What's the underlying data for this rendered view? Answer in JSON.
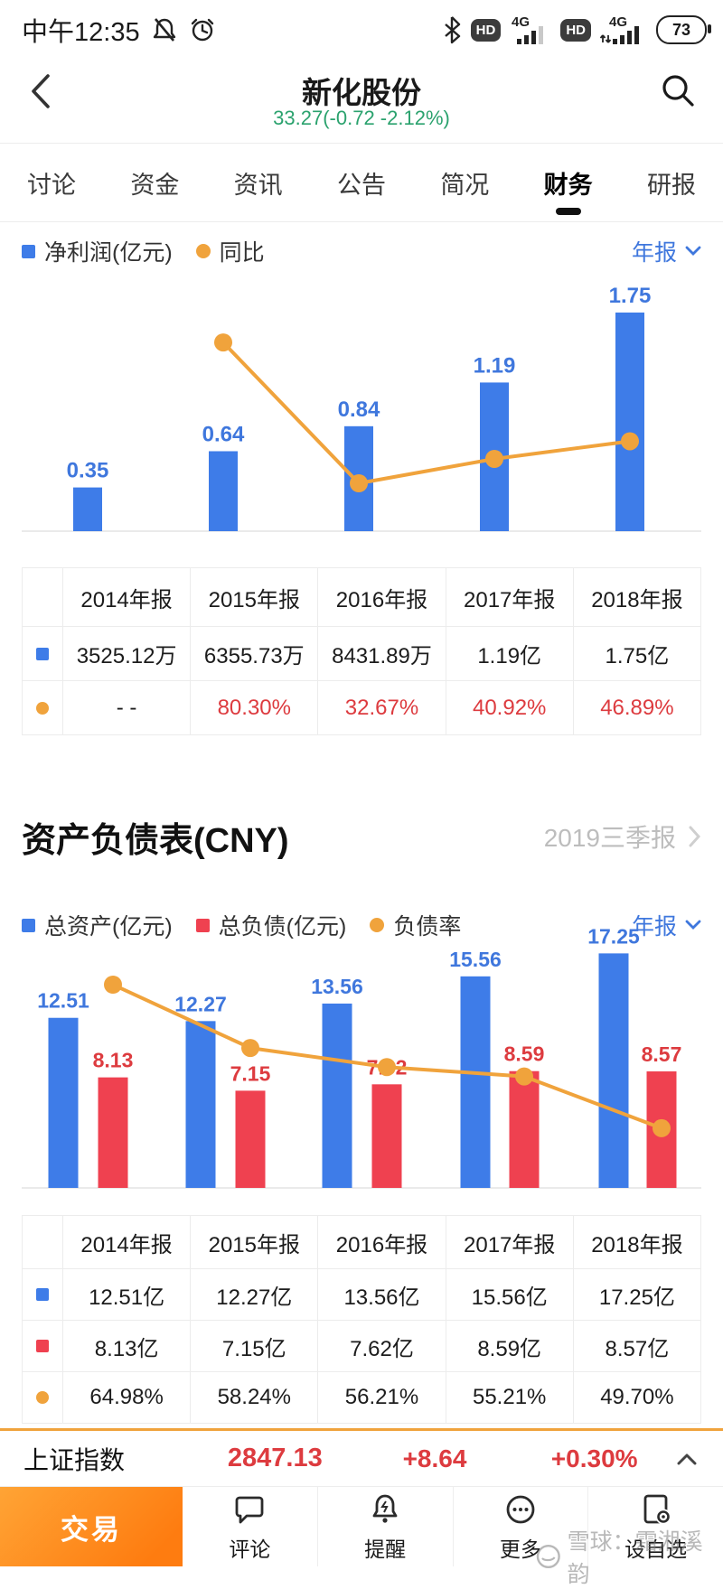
{
  "status_bar": {
    "time": "中午12:35",
    "volte_badge": "HD",
    "network_type": "4G",
    "battery": "73"
  },
  "header": {
    "title": "新化股份",
    "quote": "33.27(-0.72 -2.12%)",
    "quote_color": "#2ba26e"
  },
  "tabs": {
    "items": [
      "讨论",
      "资金",
      "资讯",
      "公告",
      "简况",
      "财务",
      "研报"
    ],
    "active_index": 5
  },
  "net_profit_section": {
    "legend": [
      {
        "label": "净利润(亿元)",
        "color": "#3e7ce8",
        "shape": "square"
      },
      {
        "label": "同比",
        "color": "#f0a33c",
        "shape": "circle"
      }
    ],
    "period_selector": "年报"
  },
  "balance_section": {
    "title": "资产负债表(CNY)",
    "period_badge": "2019三季报",
    "legend": [
      {
        "label": "总资产(亿元)",
        "color": "#3e7ce8",
        "shape": "square"
      },
      {
        "label": "总负债(亿元)",
        "color": "#ef4150",
        "shape": "square"
      },
      {
        "label": "负债率",
        "color": "#f0a33c",
        "shape": "circle"
      }
    ],
    "period_selector": "年报"
  },
  "chart_data": [
    {
      "id": "net-profit-chart",
      "type": "bar+line",
      "title": "净利润(亿元) 与 同比",
      "categories": [
        "2014年报",
        "2015年报",
        "2016年报",
        "2017年报",
        "2018年报"
      ],
      "series": [
        {
          "name": "净利润(亿元)",
          "type": "bar",
          "color": "#3e7ce8",
          "label_color": "#3f77dd",
          "values": [
            0.35,
            0.64,
            0.84,
            1.19,
            1.75
          ]
        },
        {
          "name": "同比",
          "type": "line",
          "color": "#f0a33c",
          "unit": "%",
          "values": [
            null,
            80.3,
            32.67,
            40.92,
            46.89
          ]
        }
      ],
      "grid": false,
      "legend_position": "top"
    },
    {
      "id": "balance-chart",
      "type": "bar+line",
      "title": "总资产 总负债 与 负债率",
      "categories": [
        "2014年报",
        "2015年报",
        "2016年报",
        "2017年报",
        "2018年报"
      ],
      "series": [
        {
          "name": "总资产(亿元)",
          "type": "bar",
          "color": "#3e7ce8",
          "label_color": "#3f77dd",
          "values": [
            12.51,
            12.27,
            13.56,
            15.56,
            17.25
          ]
        },
        {
          "name": "总负债(亿元)",
          "type": "bar",
          "color": "#ef4150",
          "label_color": "#dd3b3f",
          "values": [
            8.13,
            7.15,
            7.62,
            8.59,
            8.57
          ]
        },
        {
          "name": "负债率",
          "type": "line",
          "color": "#f0a33c",
          "unit": "%",
          "values": [
            64.98,
            58.24,
            56.21,
            55.21,
            49.7
          ]
        }
      ],
      "grid": false,
      "legend_position": "top"
    }
  ],
  "net_profit_table": {
    "headers": [
      "2014年报",
      "2015年报",
      "2016年报",
      "2017年报",
      "2018年报"
    ],
    "rows": [
      {
        "marker": "square",
        "color": "#3e7ce8",
        "cells": [
          "3525.12万",
          "6355.73万",
          "8431.89万",
          "1.19亿",
          "1.75亿"
        ],
        "red": []
      },
      {
        "marker": "circle",
        "color": "#f0a33c",
        "cells": [
          "- -",
          "80.30%",
          "32.67%",
          "40.92%",
          "46.89%"
        ],
        "red": [
          1,
          2,
          3,
          4
        ]
      }
    ]
  },
  "balance_table": {
    "headers": [
      "2014年报",
      "2015年报",
      "2016年报",
      "2017年报",
      "2018年报"
    ],
    "rows": [
      {
        "marker": "square",
        "color": "#3e7ce8",
        "cells": [
          "12.51亿",
          "12.27亿",
          "13.56亿",
          "15.56亿",
          "17.25亿"
        ],
        "red": []
      },
      {
        "marker": "square",
        "color": "#ef4150",
        "cells": [
          "8.13亿",
          "7.15亿",
          "7.62亿",
          "8.59亿",
          "8.57亿"
        ],
        "red": []
      },
      {
        "marker": "circle",
        "color": "#f0a33c",
        "cells": [
          "64.98%",
          "58.24%",
          "56.21%",
          "55.21%",
          "49.70%"
        ],
        "red": []
      }
    ]
  },
  "index_bar": {
    "name": "上证指数",
    "value": "2847.13",
    "change": "+8.64",
    "change_pct": "+0.30%"
  },
  "bottom_nav": {
    "trade_label": "交易",
    "items": [
      {
        "label": "评论",
        "icon": "comment-icon"
      },
      {
        "label": "提醒",
        "icon": "alert-bell-icon"
      },
      {
        "label": "更多",
        "icon": "more-ellipsis-icon"
      },
      {
        "label": "设自选",
        "icon": "add-watchlist-icon"
      }
    ]
  },
  "watermark": {
    "text": "雪球：霜湘溪韵"
  }
}
